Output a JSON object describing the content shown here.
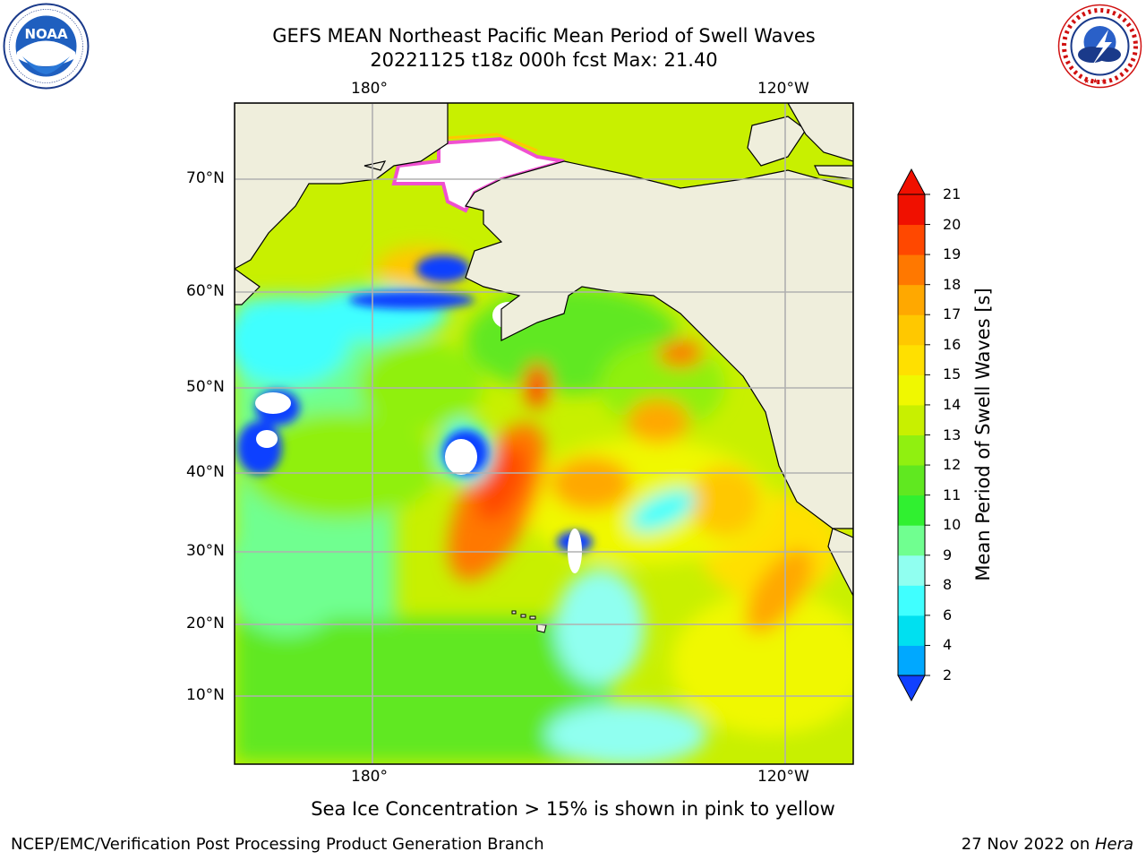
{
  "title": {
    "line1": "GEFS MEAN Northeast Pacific Mean Period of Swell Waves",
    "line2": "20221125 t18z 000h fcst   Max: 21.40"
  },
  "logos": {
    "noaa": {
      "wordmark": "NOAA",
      "ring_text": "NATIONAL OCEANIC AND ATMOSPHERIC ADMINISTRATION · U.S. DEPARTMENT OF COMMERCE"
    },
    "nws": {
      "ring_text": "NATIONAL WEATHER SERVICE"
    }
  },
  "map": {
    "region": "Northeast Pacific",
    "lon_labels_top": [
      "180°",
      "120°W"
    ],
    "lon_labels_bottom": [
      "180°",
      "120°W"
    ],
    "lat_labels": [
      "70°N",
      "60°N",
      "50°N",
      "40°N",
      "30°N",
      "20°N",
      "10°N"
    ],
    "field": "Mean Period of Swell Waves",
    "max_value": 21.4,
    "colors": {
      "land": "#efeedc",
      "ice_mask": "#ffffff",
      "ice_edge": "#f050d0",
      "gridline": "#b0b0b0"
    }
  },
  "colorbar": {
    "label": "Mean Period of Swell Waves [s]",
    "ticks": [
      "2",
      "4",
      "6",
      "8",
      "9",
      "10",
      "11",
      "12",
      "13",
      "14",
      "15",
      "16",
      "17",
      "18",
      "19",
      "20",
      "21"
    ],
    "colors": [
      "#1040ff",
      "#00a8ff",
      "#00e0f0",
      "#40ffff",
      "#90fff0",
      "#70ff90",
      "#30f030",
      "#60e820",
      "#90f010",
      "#c8f000",
      "#f0f800",
      "#ffe000",
      "#ffc800",
      "#ffa800",
      "#ff7800",
      "#ff4800",
      "#f01000"
    ],
    "extend": "both"
  },
  "footer": {
    "note": "Sea Ice Concentration > 15% is shown in pink to yellow",
    "credit": "NCEP/EMC/Verification Post Processing Product Generation Branch",
    "date": "27 Nov 2022 on ",
    "host": "Hera"
  }
}
